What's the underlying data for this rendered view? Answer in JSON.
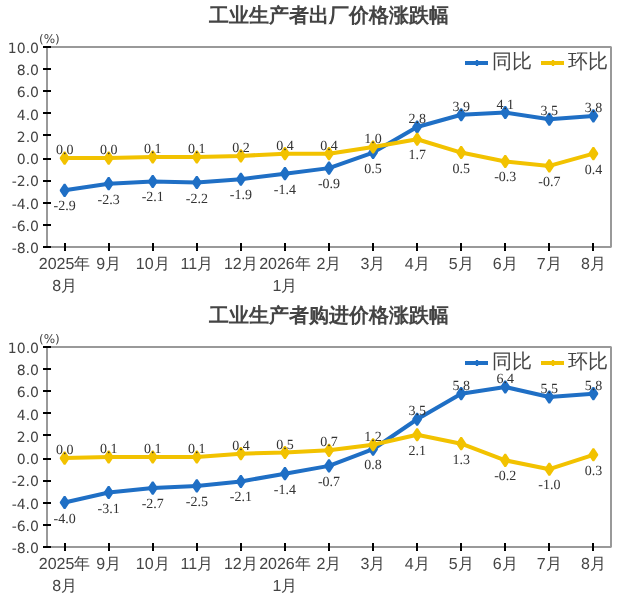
{
  "chart_data": [
    {
      "type": "line",
      "title": "工业生产者出厂价格涨跌幅",
      "ylabel": "(%)",
      "categories": [
        "2025年\n8月",
        "9月",
        "10月",
        "11月",
        "12月",
        "2026年\n1月",
        "2月",
        "3月",
        "4月",
        "5月",
        "6月",
        "7月",
        "8月"
      ],
      "series": [
        {
          "name": "同比",
          "color": "#1f6fc5",
          "values": [
            -2.9,
            -2.3,
            -2.1,
            -2.2,
            -1.9,
            -1.4,
            -0.9,
            0.5,
            2.8,
            3.9,
            4.1,
            3.5,
            3.8
          ],
          "value_labels": [
            "-2.9",
            "-2.3",
            "-2.1",
            "-2.2",
            "-1.9",
            "-1.4",
            "-0.9",
            "0.5",
            "2.8",
            "3.9",
            "4.1",
            "3.5",
            "3.8"
          ]
        },
        {
          "name": "环比",
          "color": "#f2c200",
          "values": [
            0.0,
            0.0,
            0.1,
            0.1,
            0.2,
            0.4,
            0.4,
            1.0,
            1.7,
            0.5,
            -0.3,
            -0.7,
            0.4
          ],
          "value_labels": [
            "0.0",
            "0.0",
            "0.1",
            "0.1",
            "0.2",
            "0.4",
            "0.4",
            "1.0",
            "1.7",
            "0.5",
            "-0.3",
            "-0.7",
            "0.4"
          ]
        }
      ],
      "ylim": [
        -8,
        10
      ],
      "yticks": [
        {
          "value": -8,
          "label": "-8.0"
        },
        {
          "value": -6,
          "label": "-6.0"
        },
        {
          "value": -4,
          "label": "-4.0"
        },
        {
          "value": -2,
          "label": "-2.0"
        },
        {
          "value": 0,
          "label": "0.0"
        },
        {
          "value": 2,
          "label": "2.0"
        },
        {
          "value": 4,
          "label": "4.0"
        },
        {
          "value": 6,
          "label": "6.0"
        },
        {
          "value": 8,
          "label": "8.0"
        },
        {
          "value": 10,
          "label": "10.0"
        }
      ],
      "legend": "top right",
      "marker": "diamond",
      "grid": false
    },
    {
      "type": "line",
      "title": "工业生产者购进价格涨跌幅",
      "ylabel": "(%)",
      "categories": [
        "2025年\n8月",
        "9月",
        "10月",
        "11月",
        "12月",
        "2026年\n1月",
        "2月",
        "3月",
        "4月",
        "5月",
        "6月",
        "7月",
        "8月"
      ],
      "series": [
        {
          "name": "同比",
          "color": "#1f6fc5",
          "values": [
            -4.0,
            -3.1,
            -2.7,
            -2.5,
            -2.1,
            -1.4,
            -0.7,
            0.8,
            3.5,
            5.8,
            6.4,
            5.5,
            5.8
          ],
          "value_labels": [
            "-4.0",
            "-3.1",
            "-2.7",
            "-2.5",
            "-2.1",
            "-1.4",
            "-0.7",
            "0.8",
            "3.5",
            "5.8",
            "6.4",
            "5.5",
            "5.8"
          ]
        },
        {
          "name": "环比",
          "color": "#f2c200",
          "values": [
            0.0,
            0.1,
            0.1,
            0.1,
            0.4,
            0.5,
            0.7,
            1.2,
            2.1,
            1.3,
            -0.2,
            -1.0,
            0.3
          ],
          "value_labels": [
            "0.0",
            "0.1",
            "0.1",
            "0.1",
            "0.4",
            "0.5",
            "0.7",
            "1.2",
            "2.1",
            "1.3",
            "-0.2",
            "-1.0",
            "0.3"
          ]
        }
      ],
      "ylim": [
        -8,
        10
      ],
      "yticks": [
        {
          "value": -8,
          "label": "-8.0"
        },
        {
          "value": -6,
          "label": "-6.0"
        },
        {
          "value": -4,
          "label": "-4.0"
        },
        {
          "value": -2,
          "label": "-2.0"
        },
        {
          "value": 0,
          "label": "0.0"
        },
        {
          "value": 2,
          "label": "2.0"
        },
        {
          "value": 4,
          "label": "4.0"
        },
        {
          "value": 6,
          "label": "6.0"
        },
        {
          "value": 8,
          "label": "8.0"
        },
        {
          "value": 10,
          "label": "10.0"
        }
      ],
      "legend": "top right",
      "marker": "diamond",
      "grid": false
    }
  ]
}
